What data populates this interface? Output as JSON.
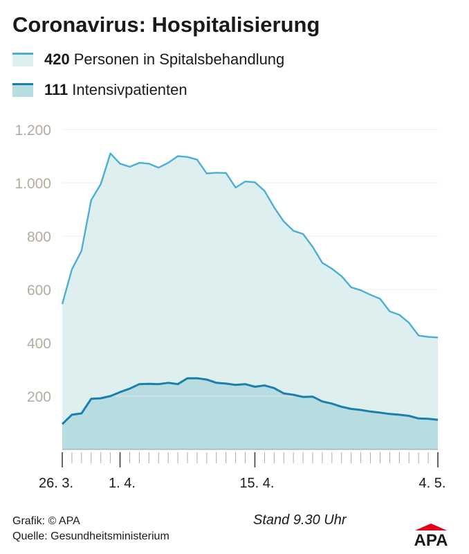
{
  "title": "Coronavirus: Hospitalisierung",
  "legend": [
    {
      "value": "420",
      "label": "Personen in Spitalsbehandlung",
      "line_color": "#4aaed6",
      "fill_color": "#deefef"
    },
    {
      "value": "111",
      "label": "Intensivpatienten",
      "line_color": "#1b7fae",
      "fill_color": "#b8dde0"
    }
  ],
  "footer": {
    "credit": "Grafik: © APA",
    "source": "Quelle: Gesundheitsministerium",
    "stand": "Stand 9.30 Uhr",
    "logo_text": "APA",
    "logo_color": "#e2001a"
  },
  "chart_data": {
    "type": "area",
    "title": "Coronavirus: Hospitalisierung",
    "xlabel": "",
    "ylabel": "",
    "ylim": [
      0,
      1200
    ],
    "yticks": [
      200,
      400,
      600,
      800,
      1000,
      1200
    ],
    "ytick_labels": [
      "200",
      "400",
      "600",
      "800",
      "1.000",
      "1.200"
    ],
    "grid": true,
    "legend_position": "top-left",
    "x": [
      "26.3.",
      "27.3.",
      "28.3.",
      "29.3.",
      "30.3.",
      "31.3.",
      "1.4.",
      "2.4.",
      "3.4.",
      "4.4.",
      "5.4.",
      "6.4.",
      "7.4.",
      "8.4.",
      "9.4.",
      "10.4.",
      "11.4.",
      "12.4.",
      "13.4.",
      "14.4.",
      "15.4.",
      "16.4.",
      "17.4.",
      "18.4.",
      "19.4.",
      "20.4.",
      "21.4.",
      "22.4.",
      "23.4.",
      "24.4.",
      "25.4.",
      "26.4.",
      "27.4.",
      "28.4.",
      "29.4.",
      "30.4.",
      "1.5.",
      "2.5.",
      "3.5.",
      "4.5."
    ],
    "xtick_labels": [
      {
        "index": 0,
        "label": "26. 3."
      },
      {
        "index": 6,
        "label": "1. 4."
      },
      {
        "index": 20,
        "label": "15. 4."
      },
      {
        "index": 39,
        "label": "4. 5."
      }
    ],
    "series": [
      {
        "name": "Personen in Spitalsbehandlung",
        "color": "#4aaed6",
        "fill": "#deefef",
        "values": [
          545,
          675,
          745,
          935,
          995,
          1110,
          1072,
          1060,
          1075,
          1072,
          1057,
          1075,
          1100,
          1097,
          1087,
          1035,
          1038,
          1037,
          982,
          1005,
          1002,
          970,
          908,
          855,
          820,
          808,
          760,
          700,
          678,
          650,
          608,
          597,
          580,
          565,
          518,
          505,
          475,
          427,
          422,
          420
        ]
      },
      {
        "name": "Intensivpatienten",
        "color": "#1b7fae",
        "fill": "#b8dde0",
        "values": [
          95,
          130,
          135,
          190,
          192,
          200,
          215,
          228,
          245,
          246,
          245,
          250,
          245,
          267,
          267,
          262,
          250,
          247,
          242,
          245,
          235,
          240,
          230,
          210,
          205,
          197,
          198,
          180,
          172,
          160,
          152,
          148,
          142,
          138,
          133,
          130,
          126,
          116,
          115,
          111
        ]
      }
    ]
  }
}
